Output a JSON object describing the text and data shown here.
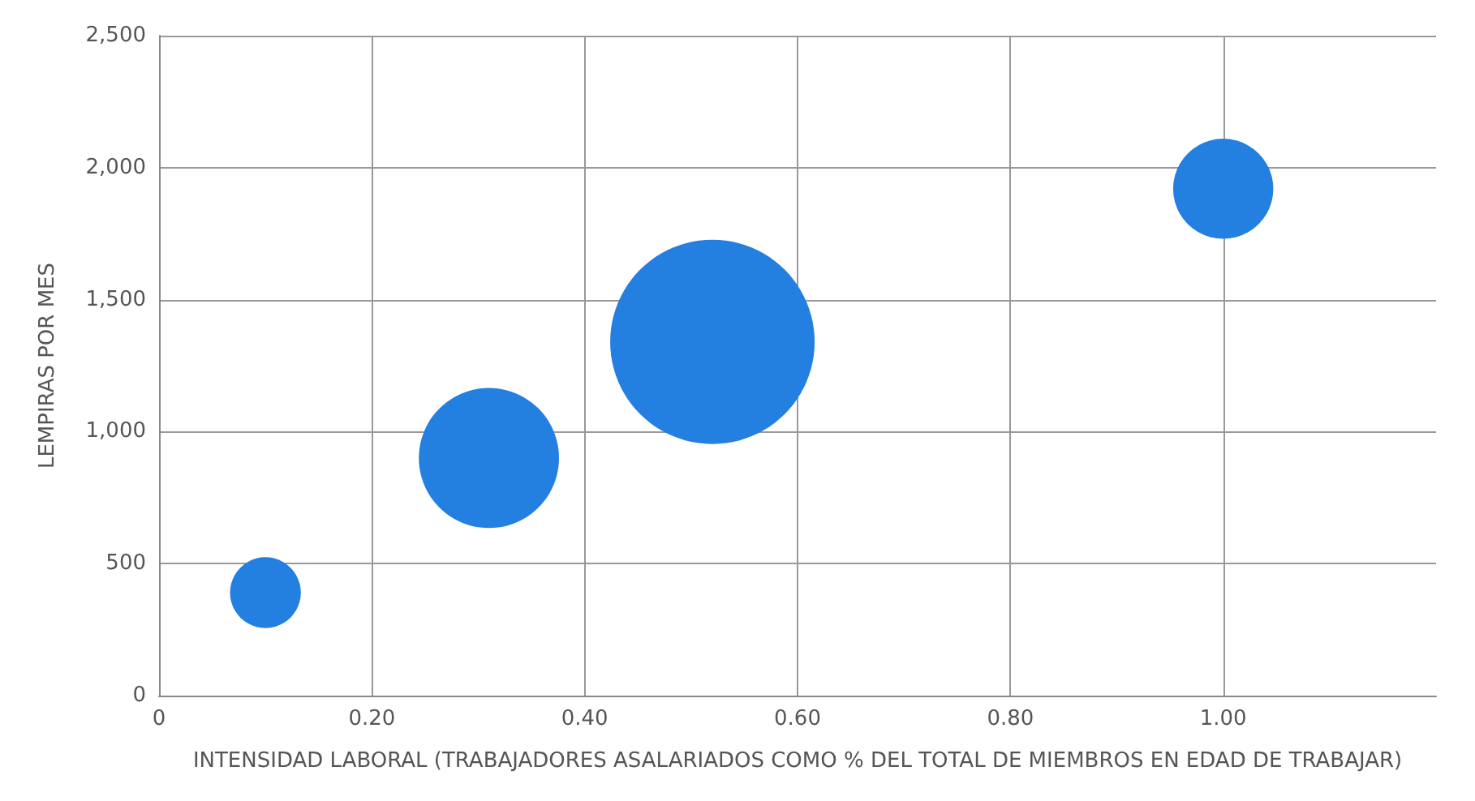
{
  "chart_data": {
    "type": "bubble",
    "xlabel": "INTENSIDAD LABORAL (TRABAJADORES ASALARIADOS COMO % DEL TOTAL DE MIEMBROS EN EDAD DE TRABAJAR)",
    "ylabel": "LEMPIRAS POR MES",
    "x": [
      0.1,
      0.31,
      0.52,
      1.0
    ],
    "values": [
      390,
      900,
      1340,
      1920
    ],
    "sizes": [
      0.12,
      0.47,
      1,
      0.24
    ],
    "color": "#237fe0",
    "xlim": [
      0,
      1.2
    ],
    "xticks": [
      0,
      {
        "value": 0.2,
        "label": "0.20"
      },
      {
        "value": 0.4,
        "label": "0.40"
      },
      {
        "value": 0.6,
        "label": "0.60"
      },
      {
        "value": 0.8,
        "label": "0.80"
      },
      {
        "value": 1,
        "label": "1.00"
      }
    ],
    "ylim": [
      0,
      2500
    ],
    "yticks": [
      0,
      500,
      {
        "value": 1000,
        "label": "1,000"
      },
      {
        "value": 1500,
        "label": "1,500"
      },
      {
        "value": 2000,
        "label": "2,000"
      },
      {
        "value": 2500,
        "label": "2,500"
      }
    ],
    "grid": true
  }
}
